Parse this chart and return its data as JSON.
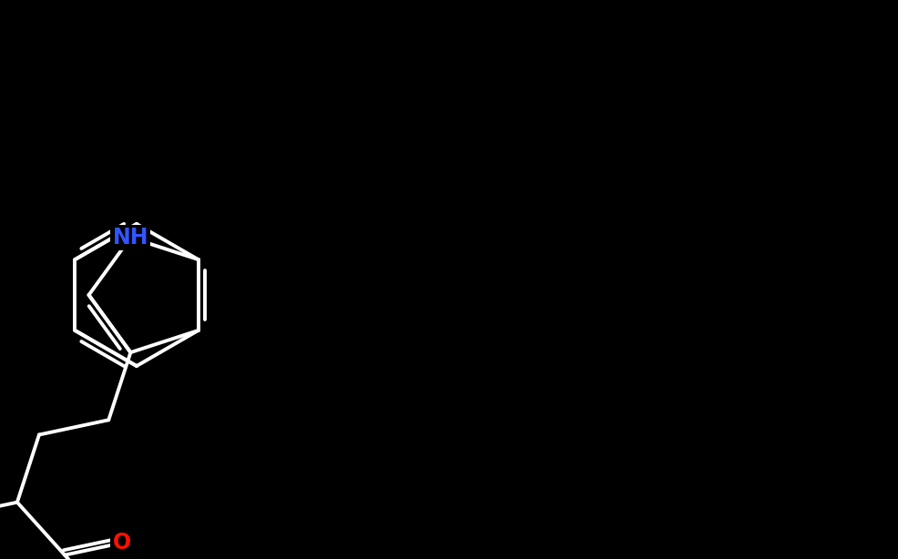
{
  "background_color": "#000000",
  "bond_color": "#ffffff",
  "bond_width": 2.8,
  "NH_color": "#3355ff",
  "O_color": "#ff1100",
  "font_size": 17,
  "figsize": [
    9.87,
    6.14
  ],
  "dpi": 100,
  "BL": 0.78
}
